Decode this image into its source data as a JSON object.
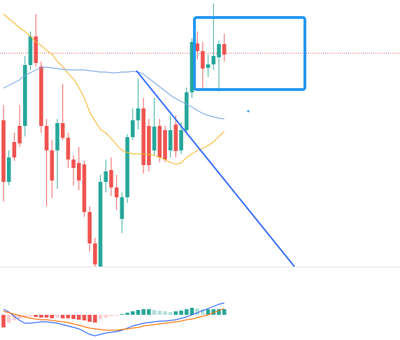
{
  "chart_data": [
    {
      "type": "candlestick",
      "ylim": [
        0,
        381
      ],
      "up_color": "#26a69a",
      "down_color": "#ef5350",
      "open": [
        209,
        121,
        178,
        201,
        201,
        288,
        329,
        286,
        201,
        166,
        166,
        205,
        184,
        153,
        148,
        146,
        78,
        33,
        0,
        121,
        138,
        113,
        68,
        99,
        185,
        209,
        226,
        201,
        166,
        201,
        195,
        166,
        203,
        166,
        195,
        249,
        319,
        308,
        284,
        289,
        299,
        318
      ],
      "close": [
        121,
        156,
        156,
        176,
        288,
        329,
        291,
        201,
        166,
        123,
        205,
        184,
        153,
        141,
        123,
        78,
        33,
        3,
        121,
        136,
        113,
        99,
        99,
        185,
        209,
        226,
        145,
        145,
        200,
        156,
        153,
        195,
        165,
        195,
        249,
        321,
        308,
        283,
        289,
        301,
        318,
        303
      ],
      "high": [
        231,
        166,
        191,
        231,
        301,
        336,
        361,
        293,
        211,
        181,
        211,
        261,
        191,
        159,
        171,
        151,
        86,
        41,
        131,
        153,
        156,
        131,
        106,
        189,
        226,
        269,
        241,
        211,
        241,
        211,
        201,
        216,
        216,
        206,
        256,
        326,
        336,
        321,
        303,
        376,
        323,
        333
      ],
      "low": [
        93,
        116,
        151,
        171,
        186,
        281,
        286,
        191,
        86,
        98,
        111,
        181,
        141,
        116,
        109,
        71,
        21,
        0,
        0,
        106,
        101,
        81,
        48,
        91,
        181,
        196,
        133,
        136,
        159,
        149,
        149,
        156,
        156,
        161,
        191,
        241,
        296,
        254,
        271,
        281,
        250,
        293
      ],
      "moving_averages": [
        {
          "color": "#f5b82e",
          "values": [
            361,
            354,
            348,
            341,
            336,
            329,
            321,
            316,
            309,
            304,
            293,
            286,
            276,
            268,
            256,
            241,
            221,
            208,
            196,
            191,
            183,
            174,
            166,
            163,
            161,
            161,
            161,
            160,
            159,
            156,
            153,
            149,
            146,
            148,
            156,
            161,
            166,
            169,
            173,
            178,
            186,
            193
          ]
        },
        {
          "color": "#7ba7e8",
          "values": [
            255,
            259,
            263,
            267,
            273,
            277,
            281,
            284,
            285,
            284,
            283,
            282,
            281,
            281,
            281,
            281,
            280,
            279,
            278,
            278,
            277,
            277,
            278,
            278,
            279,
            278,
            275,
            269,
            263,
            257,
            251,
            245,
            240,
            236,
            232,
            228,
            223,
            219,
            216,
            214,
            212,
            211
          ]
        }
      ],
      "price_line": {
        "value": 305,
        "color": "#c62828"
      }
    },
    {
      "type": "macd",
      "ylim": [
        -36,
        55
      ],
      "histogram": [
        -18,
        -12,
        -8,
        -6,
        -4,
        -3,
        -3,
        -4,
        -4,
        -5,
        -4,
        -5,
        -5,
        -6,
        -7,
        -8,
        -10,
        -11,
        -6,
        -4,
        -2,
        -1,
        1,
        3,
        5,
        7,
        8,
        8,
        7,
        6,
        5,
        4,
        5,
        6,
        8,
        10,
        9,
        8,
        8,
        8,
        8,
        8
      ],
      "histogram_colors": {
        "rising_above": "#26a69a",
        "falling_above": "#b2dfdb",
        "rising_below": "#ffcdd2",
        "falling_below": "#ef5350"
      },
      "series": [
        {
          "color": "#2962ff",
          "values": [
            8,
            4,
            -2,
            -8,
            -12,
            -12,
            -11,
            -10,
            -10,
            -11,
            -12,
            -14,
            -16,
            -18,
            -20,
            -24,
            -28,
            -30,
            -28,
            -26,
            -25,
            -24,
            -22,
            -19,
            -16,
            -14,
            -12,
            -11,
            -10,
            -9,
            -9,
            -8,
            -7,
            -5,
            -3,
            0,
            3,
            6,
            9,
            12,
            15,
            17
          ]
        },
        {
          "color": "#ff6d00",
          "values": [
            5,
            3,
            1,
            -1,
            -3,
            -5,
            -6,
            -7,
            -7,
            -8,
            -9,
            -10,
            -11,
            -13,
            -15,
            -17,
            -19,
            -20,
            -21,
            -22,
            -22,
            -22,
            -21,
            -20,
            -19,
            -18,
            -16,
            -15,
            -14,
            -13,
            -12,
            -11,
            -10,
            -9,
            -7,
            -6,
            -4,
            -2,
            0,
            3,
            6,
            9
          ]
        }
      ]
    }
  ]
}
